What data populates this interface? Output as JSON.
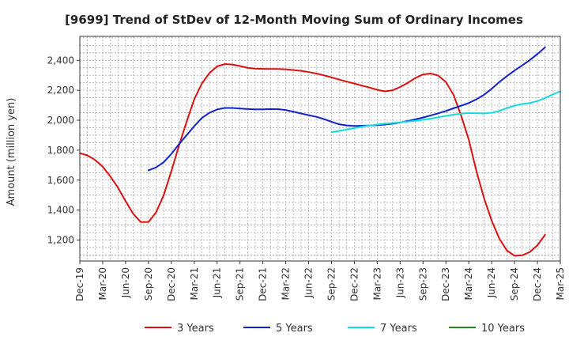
{
  "chart_data": {
    "type": "line",
    "title": "[9699]  Trend of StDev of 12-Month Moving Sum of Ordinary Incomes",
    "xlabel": "",
    "ylabel": "Amount (million yen)",
    "ylim": [
      1060,
      2560
    ],
    "yticks": [
      1200,
      1400,
      1600,
      1800,
      2000,
      2200,
      2400
    ],
    "ytick_labels": [
      "1,200",
      "1,400",
      "1,600",
      "1,800",
      "2,000",
      "2,200",
      "2,400"
    ],
    "x_categories": [
      "Dec-19",
      "Mar-20",
      "Jun-20",
      "Sep-20",
      "Dec-20",
      "Mar-21",
      "Jun-21",
      "Sep-21",
      "Dec-21",
      "Mar-22",
      "Jun-22",
      "Sep-22",
      "Dec-22",
      "Mar-23",
      "Jun-23",
      "Sep-23",
      "Dec-23",
      "Mar-24",
      "Jun-24",
      "Sep-24",
      "Dec-24",
      "Mar-25"
    ],
    "x_index_step": "month",
    "grid": true,
    "legend_position": "bottom",
    "series": [
      {
        "name": "3 Years",
        "color": "#dd1111",
        "start_index": 0,
        "values": [
          1780,
          1765,
          1735,
          1690,
          1625,
          1550,
          1460,
          1375,
          1320,
          1320,
          1385,
          1500,
          1660,
          1830,
          1990,
          2140,
          2245,
          2315,
          2360,
          2375,
          2372,
          2362,
          2350,
          2345,
          2343,
          2343,
          2342,
          2340,
          2335,
          2330,
          2322,
          2312,
          2300,
          2286,
          2272,
          2258,
          2245,
          2231,
          2218,
          2203,
          2193,
          2200,
          2222,
          2250,
          2282,
          2306,
          2312,
          2298,
          2255,
          2170,
          2030,
          1870,
          1660,
          1480,
          1330,
          1210,
          1130,
          1095,
          1098,
          1120,
          1165,
          1235
        ]
      },
      {
        "name": "5 Years",
        "color": "#1122cc",
        "start_index": 9,
        "values": [
          1665,
          1685,
          1720,
          1775,
          1840,
          1900,
          1960,
          2015,
          2050,
          2072,
          2082,
          2082,
          2078,
          2075,
          2073,
          2073,
          2075,
          2074,
          2068,
          2057,
          2045,
          2034,
          2023,
          2008,
          1990,
          1973,
          1965,
          1962,
          1963,
          1965,
          1967,
          1971,
          1977,
          1985,
          1995,
          2006,
          2018,
          2032,
          2046,
          2062,
          2080,
          2097,
          2115,
          2140,
          2170,
          2210,
          2255,
          2295,
          2332,
          2366,
          2402,
          2442,
          2487
        ]
      },
      {
        "name": "7 Years",
        "color": "#11dddd",
        "start_index": 33,
        "values": [
          1920,
          1928,
          1938,
          1948,
          1957,
          1965,
          1971,
          1977,
          1981,
          1986,
          1991,
          1996,
          2003,
          2011,
          2020,
          2029,
          2037,
          2044,
          2048,
          2047,
          2045,
          2050,
          2062,
          2082,
          2097,
          2108,
          2115,
          2128,
          2148,
          2172,
          2193
        ]
      },
      {
        "name": "10 Years",
        "color": "#228822",
        "start_index": 0,
        "values": []
      }
    ]
  }
}
